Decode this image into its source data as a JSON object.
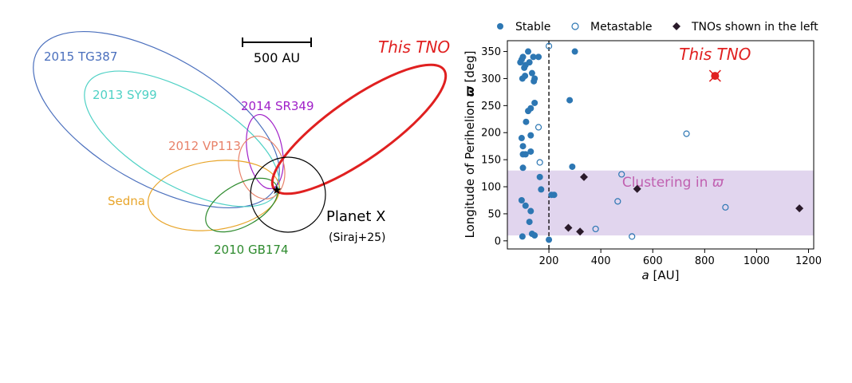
{
  "left_panel": {
    "scale_bar_label": "500 AU",
    "orbits": [
      {
        "name": "2015 TG387",
        "color": "#4a6fbd"
      },
      {
        "name": "2013 SY99",
        "color": "#4fd1c5"
      },
      {
        "name": "2014 SR349",
        "color": "#a020c8"
      },
      {
        "name": "2012 VP113",
        "color": "#e8826a"
      },
      {
        "name": "Sedna",
        "color": "#e8a52a"
      },
      {
        "name": "2010 GB174",
        "color": "#2e8b2e"
      },
      {
        "name": "This TNO",
        "color": "#e02020"
      }
    ],
    "planet_x_label": "Planet X",
    "planet_x_ref": "(Siraj+25)"
  },
  "chart_data": {
    "type": "scatter",
    "xlabel_italic": "a",
    "xlabel_rest": " [AU]",
    "ylabel_text": "Longitude of Perihelion ",
    "ylabel_symbol": "ϖ",
    "ylabel_unit": " [deg]",
    "xlim": [
      40,
      1220
    ],
    "ylim": [
      -15,
      370
    ],
    "xticks": [
      200,
      400,
      600,
      800,
      1000,
      1200
    ],
    "yticks": [
      0,
      50,
      100,
      150,
      200,
      250,
      300,
      350
    ],
    "vline_x": 200,
    "band": {
      "y_min": 10,
      "y_max": 130,
      "label": "Clustering in ",
      "symbol": "ϖ",
      "color": "#c9b3e0"
    },
    "legend": [
      {
        "label": "Stable",
        "marker": "filled-circle"
      },
      {
        "label": "Metastable",
        "marker": "open-circle"
      },
      {
        "label": "TNOs shown in the left",
        "marker": "diamond"
      }
    ],
    "colors": {
      "stable": "#2d77b3",
      "tno": "#2a1a2a",
      "this_tno": "#e02020",
      "band_label": "#c060b0"
    },
    "series": [
      {
        "name": "Stable",
        "points": [
          [
            90,
            330
          ],
          [
            95,
            335
          ],
          [
            100,
            340
          ],
          [
            105,
            320
          ],
          [
            110,
            325
          ],
          [
            98,
            300
          ],
          [
            108,
            305
          ],
          [
            120,
            350
          ],
          [
            125,
            330
          ],
          [
            135,
            310
          ],
          [
            140,
            340
          ],
          [
            145,
            300
          ],
          [
            142,
            295
          ],
          [
            130,
            245
          ],
          [
            145,
            255
          ],
          [
            112,
            220
          ],
          [
            130,
            195
          ],
          [
            95,
            190
          ],
          [
            100,
            175
          ],
          [
            100,
            160
          ],
          [
            110,
            160
          ],
          [
            130,
            165
          ],
          [
            165,
            118
          ],
          [
            170,
            95
          ],
          [
            100,
            135
          ],
          [
            110,
            65
          ],
          [
            95,
            75
          ],
          [
            130,
            55
          ],
          [
            125,
            35
          ],
          [
            135,
            13
          ],
          [
            145,
            10
          ],
          [
            98,
            8
          ],
          [
            280,
            260
          ],
          [
            300,
            350
          ],
          [
            290,
            137
          ],
          [
            200,
            2
          ],
          [
            210,
            85
          ],
          [
            220,
            85
          ],
          [
            160,
            340
          ],
          [
            120,
            240
          ]
        ]
      },
      {
        "name": "Metastable",
        "points": [
          [
            200,
            360
          ],
          [
            160,
            210
          ],
          [
            165,
            145
          ],
          [
            380,
            22
          ],
          [
            480,
            123
          ],
          [
            465,
            73
          ],
          [
            520,
            8
          ],
          [
            730,
            198
          ],
          [
            880,
            62
          ]
        ]
      },
      {
        "name": "TNOs shown in the left",
        "points": [
          [
            335,
            118
          ],
          [
            540,
            96
          ],
          [
            275,
            24
          ],
          [
            320,
            17
          ],
          [
            1165,
            60
          ]
        ]
      },
      {
        "name": "This TNO",
        "x": 840,
        "y": 305,
        "label": "This TNO"
      }
    ]
  }
}
